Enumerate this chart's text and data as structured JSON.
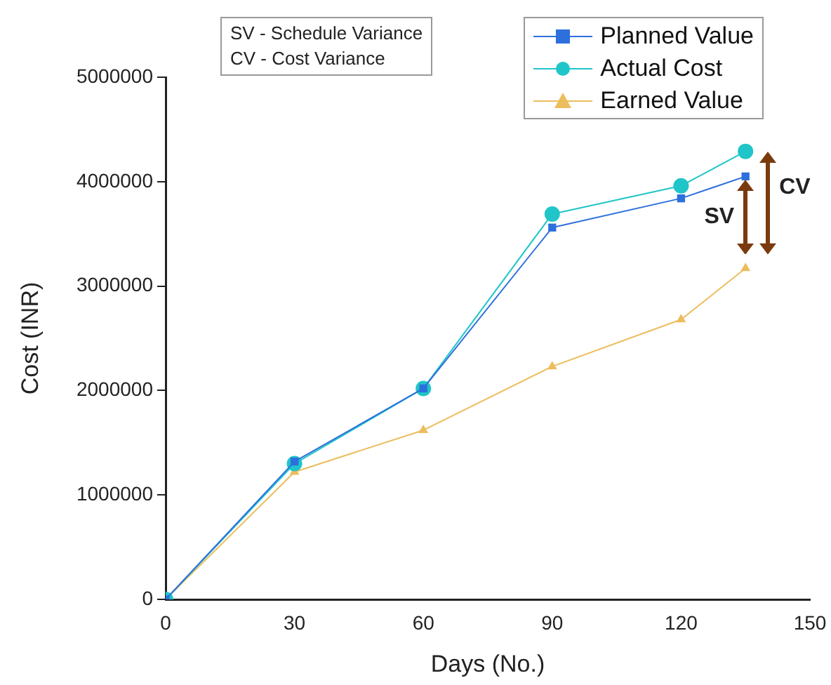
{
  "chart_data": {
    "type": "line",
    "xlabel": "Days (No.)",
    "ylabel": "Cost (INR)",
    "x": [
      0,
      30,
      60,
      90,
      120,
      135
    ],
    "series": [
      {
        "name": "Planned Value",
        "color": "#2d6fdc",
        "marker": "square",
        "values": [
          0,
          1320000,
          2020000,
          3560000,
          3840000,
          4050000
        ]
      },
      {
        "name": "Actual Cost",
        "color": "#1fc5c8",
        "marker": "circle",
        "values": [
          0,
          1300000,
          2020000,
          3690000,
          3960000,
          4290000
        ]
      },
      {
        "name": "Earned Value",
        "color": "#ecbd5c",
        "marker": "triangle",
        "values": [
          0,
          1220000,
          1620000,
          2230000,
          2680000,
          3170000
        ]
      }
    ],
    "xlim": [
      0,
      150
    ],
    "xticks": [
      0,
      30,
      60,
      90,
      120,
      150
    ],
    "ylim": [
      0,
      5000000
    ],
    "yticks": [
      0,
      1000000,
      2000000,
      3000000,
      4000000,
      5000000
    ],
    "grid": false,
    "legend": "top right",
    "annotations": [
      "SV",
      "CV",
      "SV - Schedule Variance",
      "CV - Cost Variance"
    ]
  }
}
